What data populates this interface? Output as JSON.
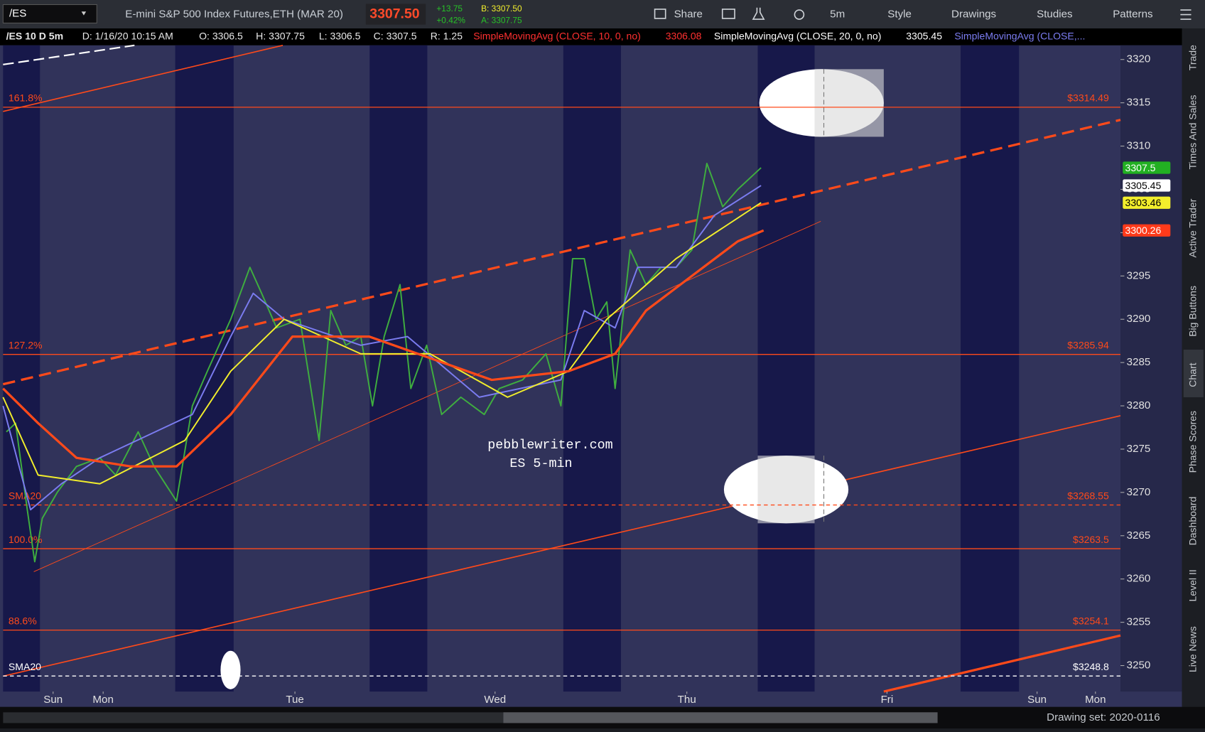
{
  "toolbar": {
    "symbol": "/ES",
    "description": "E-mini S&P 500 Index Futures,ETH (MAR 20)",
    "last": "3307.50",
    "net_change": "+13.75",
    "pct_change": "+0.42%",
    "bid": "B: 3307.50",
    "ask": "A: 3307.75",
    "buttons": [
      "Share",
      "5m",
      "Style",
      "Drawings",
      "Studies",
      "Patterns"
    ]
  },
  "info_bar": {
    "symbol": "/ES 10 D 5m",
    "date": "D: 1/16/20 10:15 AM",
    "open": "O: 3306.5",
    "high": "H: 3307.75",
    "low": "L: 3306.5",
    "close": "C: 3307.5",
    "range": "R: 1.25",
    "studies": [
      {
        "name": "SimpleMovingAvg (CLOSE, 10, 0, no)",
        "value": "3306.08"
      },
      {
        "name": "SimpleMovingAvg (CLOSE, 20, 0, no)",
        "value": "3305.45"
      },
      {
        "name": "SimpleMovingAvg (CLOSE,..."
      }
    ]
  },
  "side_tabs": [
    "Trade",
    "Times And Sales",
    "Active Trader",
    "Big Buttons",
    "Chart",
    "Phase Scores",
    "Dashboard",
    "Level II",
    "Live News"
  ],
  "status_bar": {
    "drawing_set": "Drawing set: 2020-0116"
  },
  "chart_data": {
    "type": "line",
    "annotations": [
      "pebblewriter.com",
      "ES 5-min"
    ],
    "xlim": [
      0,
      134
    ],
    "xticks": [
      {
        "value": 6,
        "label": "Sun"
      },
      {
        "value": 12,
        "label": "Mon"
      },
      {
        "value": 35,
        "label": "Tue"
      },
      {
        "value": 59,
        "label": "Wed"
      },
      {
        "value": 82,
        "label": "Thu"
      },
      {
        "value": 106,
        "label": "Fri"
      },
      {
        "value": 124,
        "label": "Sun"
      },
      {
        "value": 131,
        "label": "Mon"
      }
    ],
    "ylim": [
      3247,
      3323.5
    ],
    "yticks": [
      3250,
      3255,
      3260,
      3265,
      3270,
      3275,
      3280,
      3285,
      3290,
      3295,
      3300,
      3305,
      3310,
      3315,
      3320
    ],
    "series": [
      {
        "color": "#3fae3f",
        "x": [
          0.4,
          1.5,
          2.9,
          3.8,
          4.7,
          6.5,
          8.8,
          11.6,
          13.5,
          16.2,
          18.1,
          20.8,
          22.7,
          24.5,
          27.3,
          29.6,
          31.0,
          32.8,
          35.6,
          37.9,
          39.3,
          41.1,
          42.9,
          44.3,
          45.7,
          47.6,
          48.9,
          50.8,
          52.6,
          54.9,
          57.7,
          59.5,
          62.3,
          65.1,
          66.9,
          68.3,
          69.7,
          71.1,
          72.4,
          73.4,
          75.2,
          77.1,
          78.9,
          80.7,
          82.6,
          84.4,
          86.3,
          88.1,
          90.9
        ],
        "values": [
          3277,
          3278,
          3268,
          3262,
          3267,
          3270,
          3273,
          3274,
          3272,
          3277,
          3273,
          3269,
          3280,
          3284,
          3290,
          3296,
          3293,
          3289,
          3290,
          3276,
          3291,
          3287,
          3288,
          3280,
          3288,
          3294,
          3282,
          3287,
          3279,
          3281,
          3279,
          3282,
          3283,
          3286,
          3280,
          3297,
          3297,
          3290,
          3292,
          3282,
          3298,
          3294,
          3296,
          3296,
          3298,
          3308,
          3303,
          3305,
          3307.5
        ]
      },
      {
        "color": "#7b7cf0",
        "x": [
          0,
          3.3,
          7.0,
          11.6,
          22.7,
          27.3,
          30.0,
          33.7,
          42.9,
          48.5,
          57.1,
          66.9,
          69.7,
          73.4,
          76.1,
          80.7,
          85.3,
          90.9
        ],
        "values": [
          3280,
          3268,
          3271,
          3274,
          3279,
          3288,
          3293,
          3290,
          3287,
          3288,
          3281,
          3283,
          3291,
          3289,
          3296,
          3296,
          3302,
          3305.45
        ]
      },
      {
        "color": "#f2ee2c",
        "x": [
          0,
          4.2,
          11.6,
          21.8,
          27.3,
          33.7,
          42.9,
          51.2,
          60.5,
          67.8,
          72.4,
          80.7,
          90.9
        ],
        "values": [
          3281,
          3272,
          3271,
          3276,
          3284,
          3290,
          3286,
          3286,
          3281,
          3284,
          3290,
          3297,
          3303.46
        ]
      },
      {
        "color": "#ff4a1a",
        "x": [
          0,
          4.2,
          8.8,
          15.3,
          20.8,
          27.3,
          34.7,
          43.9,
          58.6,
          67.8,
          73.4,
          77.1,
          82.6,
          88.1,
          91.2
        ],
        "values": [
          3282,
          3278,
          3274,
          3273,
          3273,
          3279,
          3288,
          3288,
          3283,
          3284,
          3286,
          3291,
          3295,
          3299,
          3300.26
        ]
      }
    ],
    "levels": [
      {
        "label": "161.8%",
        "value": 3314.49,
        "value_label": "$3314.49",
        "color": "#ff4a1a",
        "dashed": false
      },
      {
        "label": "127.2%",
        "value": 3285.94,
        "value_label": "$3285.94",
        "color": "#ff4a1a",
        "dashed": false
      },
      {
        "label": "SMA20",
        "value": 3268.55,
        "value_label": "$3268.55",
        "color": "#ff4a1a",
        "dashed": true
      },
      {
        "label": "100.0%",
        "value": 3263.5,
        "value_label": "$3263.5",
        "color": "#ff4a1a",
        "dashed": false
      },
      {
        "label": "88.6%",
        "value": 3254.1,
        "value_label": "$3254.1",
        "color": "#ff4a1a",
        "dashed": false
      },
      {
        "label": "SMA20",
        "value": 3248.8,
        "value_label": "$3248.8",
        "color": "#ffffff",
        "dashed": true
      }
    ],
    "price_tags": [
      {
        "value": 3307.5,
        "color": "#22b022"
      },
      {
        "value": 3305.45,
        "color": "#ffffff"
      },
      {
        "value": 3303.46,
        "color": "#f2ee2c"
      },
      {
        "value": 3300.26,
        "color": "#ff3a1a"
      }
    ]
  }
}
